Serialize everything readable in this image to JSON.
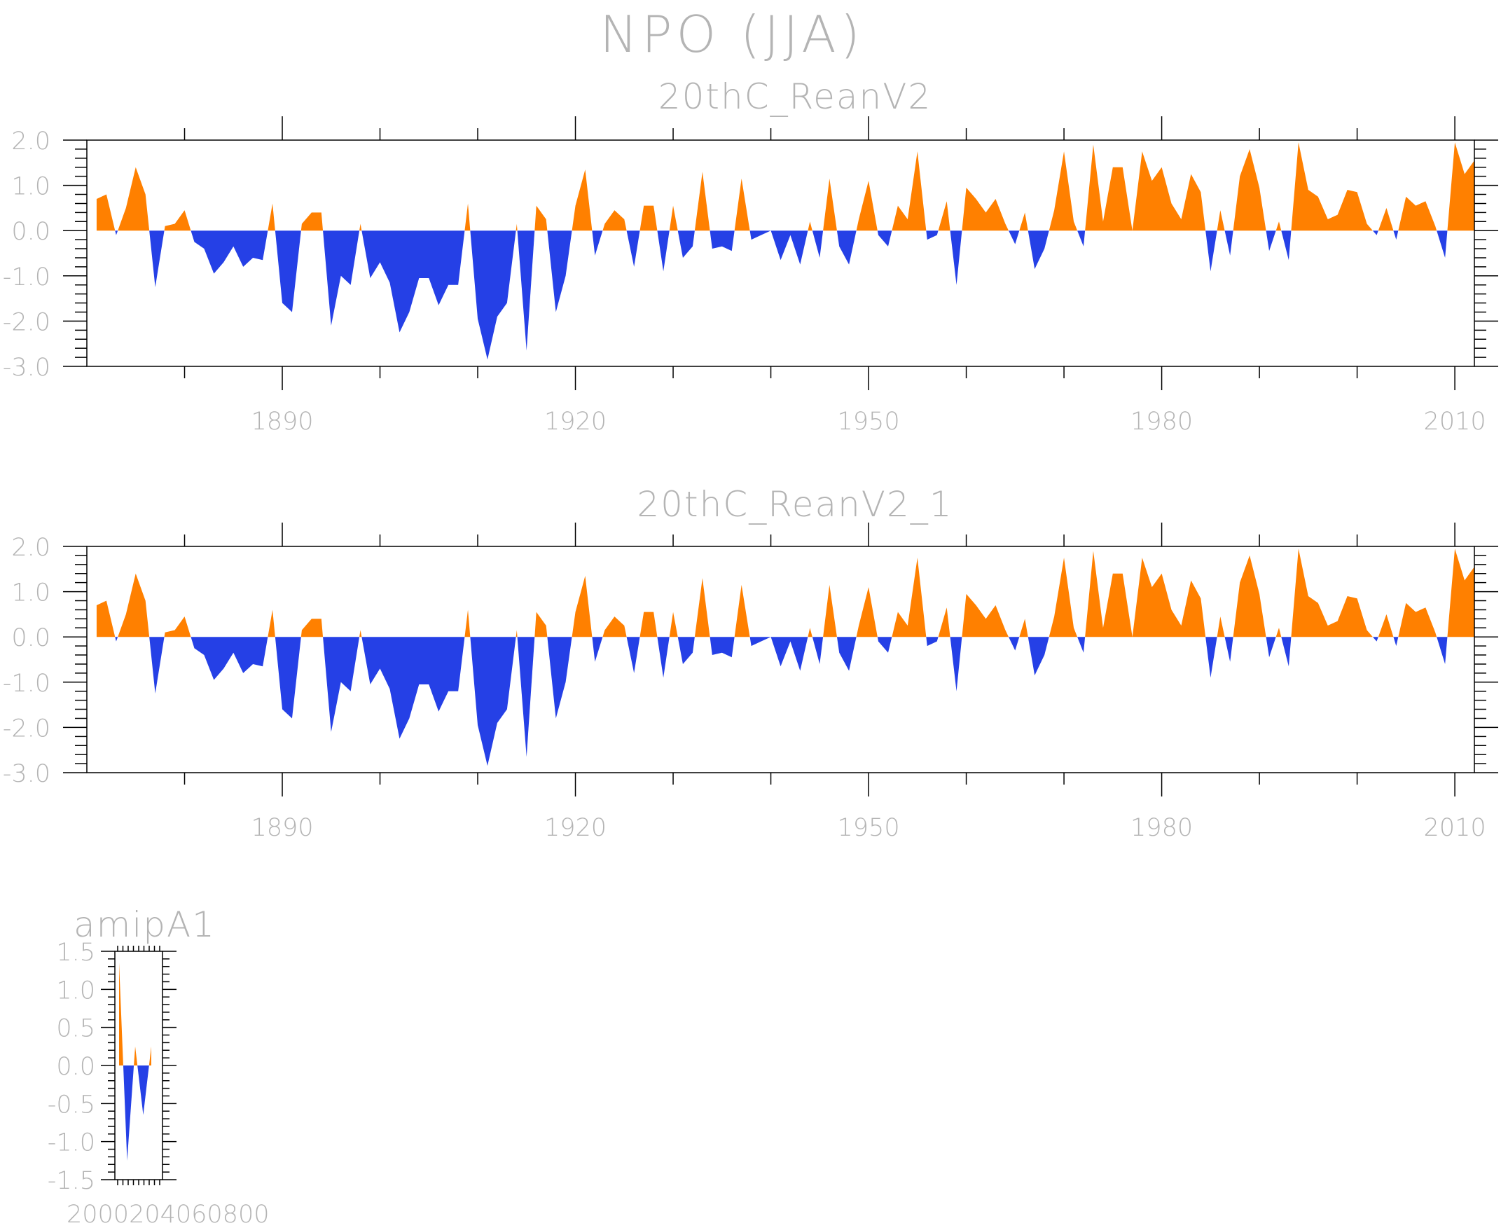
{
  "main_title": "NPO (JJA)",
  "colors": {
    "positive": "#ff8000",
    "negative": "#2540e6",
    "axis": "#000000",
    "text": "#b4b4b4"
  },
  "chart_data": [
    {
      "type": "area",
      "title": "20thC_ReanV2",
      "xlabel": "",
      "ylabel": "",
      "xlim": [
        1870,
        2012
      ],
      "ylim": [
        -3.0,
        2.0
      ],
      "x_start": 1871,
      "x_end": 2012,
      "xtick_labels": [
        "1890",
        "1920",
        "1950",
        "1980",
        "2010"
      ],
      "ytick_labels": [
        "2.0",
        "1.0",
        "0.0",
        "-1.0",
        "-2.0",
        "-3.0"
      ],
      "fill_above_zero": "orange",
      "fill_below_zero": "blue",
      "values": [
        0.7,
        0.8,
        -0.1,
        0.5,
        1.4,
        0.8,
        -1.25,
        0.1,
        0.15,
        0.45,
        -0.25,
        -0.4,
        -0.95,
        -0.7,
        -0.35,
        -0.8,
        -0.6,
        -0.65,
        0.6,
        -1.6,
        -1.8,
        0.15,
        0.4,
        0.4,
        -2.1,
        -1.0,
        -1.2,
        0.15,
        -1.05,
        -0.7,
        -1.15,
        -2.25,
        -1.8,
        -1.05,
        -1.05,
        -1.65,
        -1.2,
        -1.2,
        0.6,
        -1.95,
        -2.85,
        -1.9,
        -1.6,
        0.15,
        -2.65,
        0.55,
        0.25,
        -1.8,
        -1.0,
        0.55,
        1.35,
        -0.55,
        0.15,
        0.45,
        0.25,
        -0.8,
        0.55,
        0.55,
        -0.9,
        0.55,
        -0.6,
        -0.35,
        1.3,
        -0.4,
        -0.35,
        -0.45,
        1.15,
        -0.2,
        -0.1,
        0.0,
        -0.65,
        -0.1,
        -0.75,
        0.2,
        -0.6,
        1.15,
        -0.35,
        -0.75,
        0.25,
        1.1,
        -0.1,
        -0.35,
        0.55,
        0.25,
        1.75,
        -0.2,
        -0.1,
        0.65,
        -1.2,
        0.95,
        0.7,
        0.4,
        0.7,
        0.15,
        -0.3,
        0.4,
        -0.85,
        -0.4,
        0.45,
        1.75,
        0.2,
        -0.35,
        1.9,
        0.2,
        1.4,
        1.4,
        0.0,
        1.75,
        1.1,
        1.4,
        0.6,
        0.25,
        1.25,
        0.85,
        -0.9,
        0.45,
        -0.55,
        1.2,
        1.8,
        0.95,
        -0.45,
        0.2,
        -0.65,
        1.95,
        0.9,
        0.75,
        0.25,
        0.35,
        0.9,
        0.85,
        0.15,
        -0.1,
        0.5,
        -0.2,
        0.75,
        0.55,
        0.65,
        0.1,
        -0.6,
        1.95,
        1.25,
        1.55
      ]
    },
    {
      "type": "area",
      "title": "20thC_ReanV2_1",
      "xlabel": "",
      "ylabel": "",
      "xlim": [
        1870,
        2012
      ],
      "ylim": [
        -3.0,
        2.0
      ],
      "x_start": 1871,
      "x_end": 2012,
      "xtick_labels": [
        "1890",
        "1920",
        "1950",
        "1980",
        "2010"
      ],
      "ytick_labels": [
        "2.0",
        "1.0",
        "0.0",
        "-1.0",
        "-2.0",
        "-3.0"
      ],
      "fill_above_zero": "orange",
      "fill_below_zero": "blue",
      "values": [
        0.7,
        0.8,
        -0.1,
        0.5,
        1.4,
        0.8,
        -1.25,
        0.1,
        0.15,
        0.45,
        -0.25,
        -0.4,
        -0.95,
        -0.7,
        -0.35,
        -0.8,
        -0.6,
        -0.65,
        0.6,
        -1.6,
        -1.8,
        0.15,
        0.4,
        0.4,
        -2.1,
        -1.0,
        -1.2,
        0.15,
        -1.05,
        -0.7,
        -1.15,
        -2.25,
        -1.8,
        -1.05,
        -1.05,
        -1.65,
        -1.2,
        -1.2,
        0.6,
        -1.95,
        -2.85,
        -1.9,
        -1.6,
        0.15,
        -2.65,
        0.55,
        0.25,
        -1.8,
        -1.0,
        0.55,
        1.35,
        -0.55,
        0.15,
        0.45,
        0.25,
        -0.8,
        0.55,
        0.55,
        -0.9,
        0.55,
        -0.6,
        -0.35,
        1.3,
        -0.4,
        -0.35,
        -0.45,
        1.15,
        -0.2,
        -0.1,
        0.0,
        -0.65,
        -0.1,
        -0.75,
        0.2,
        -0.6,
        1.15,
        -0.35,
        -0.75,
        0.25,
        1.1,
        -0.1,
        -0.35,
        0.55,
        0.25,
        1.75,
        -0.2,
        -0.1,
        0.65,
        -1.2,
        0.95,
        0.7,
        0.4,
        0.7,
        0.15,
        -0.3,
        0.4,
        -0.85,
        -0.4,
        0.45,
        1.75,
        0.2,
        -0.35,
        1.9,
        0.2,
        1.4,
        1.4,
        0.0,
        1.75,
        1.1,
        1.4,
        0.6,
        0.25,
        1.25,
        0.85,
        -0.9,
        0.45,
        -0.55,
        1.2,
        1.8,
        0.95,
        -0.45,
        0.2,
        -0.65,
        1.95,
        0.9,
        0.75,
        0.25,
        0.35,
        0.9,
        0.85,
        0.15,
        -0.1,
        0.5,
        -0.2,
        0.75,
        0.55,
        0.65,
        0.1,
        -0.6,
        1.95,
        1.25,
        1.55
      ]
    },
    {
      "type": "area",
      "title": "amipA1",
      "xlabel": "",
      "ylabel": "",
      "ylim": [
        -1.5,
        1.5
      ],
      "ytick_labels": [
        "1.5",
        "1.0",
        "0.5",
        "0.0",
        "-0.5",
        "-1.0",
        "-1.5"
      ],
      "xtick_labels_overlapping": "2000204060800",
      "fill_above_zero": "orange",
      "fill_below_zero": "blue",
      "values": [
        1.35,
        -1.25,
        0.25,
        -0.65,
        0.25
      ]
    }
  ]
}
